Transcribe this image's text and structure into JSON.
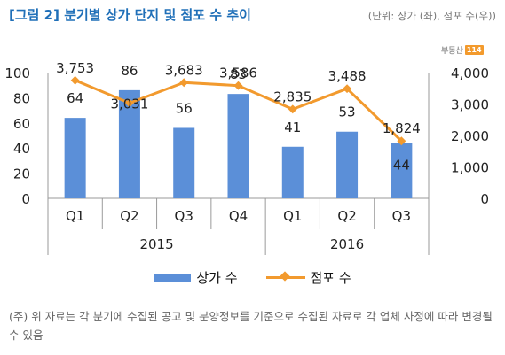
{
  "title": "[그림 2] 분기별 상가 단지 및 점포 수 추이",
  "unit_note": "(단위: 상가 (좌), 점포 수(우))",
  "logo": {
    "text": "부동산",
    "badge": "114"
  },
  "legend": {
    "bars": "상가 수",
    "line": "점포 수"
  },
  "note": "(주) 위 자료는 각 분기에 수집된 공고 및 분양정보를 기준으로 수집된 자료로 각 업체 사정에 따라 변경될 수 있음",
  "colors": {
    "bar": "#5b8fd8",
    "line": "#f29a2e",
    "title": "#1f6fb8"
  },
  "chart_data": {
    "type": "bar",
    "categories": [
      "Q1",
      "Q2",
      "Q3",
      "Q4",
      "Q1",
      "Q2",
      "Q3"
    ],
    "year_groups": [
      {
        "label": "2015",
        "span": 4
      },
      {
        "label": "2016",
        "span": 3
      }
    ],
    "series": [
      {
        "name": "상가 수",
        "type": "bar",
        "axis": "left",
        "values": [
          64,
          86,
          56,
          83,
          41,
          53,
          44
        ],
        "labels": [
          "64",
          "86",
          "56",
          "83",
          "41",
          "53",
          "44"
        ]
      },
      {
        "name": "점포 수",
        "type": "line",
        "axis": "right",
        "values": [
          3753,
          3031,
          3683,
          3586,
          2835,
          3488,
          1824
        ],
        "labels": [
          "3,753",
          "3,031",
          "3,683",
          "3,586",
          "2,835",
          "3,488",
          "1,824"
        ]
      }
    ],
    "left_axis": {
      "ylim": [
        0,
        100
      ],
      "ticks": [
        "0",
        "20",
        "40",
        "60",
        "80",
        "100"
      ]
    },
    "right_axis": {
      "ylim": [
        0,
        4000
      ],
      "ticks": [
        "0",
        "1,000",
        "2,000",
        "3,000",
        "4,000"
      ]
    },
    "grid": false,
    "legend_position": "bottom"
  }
}
